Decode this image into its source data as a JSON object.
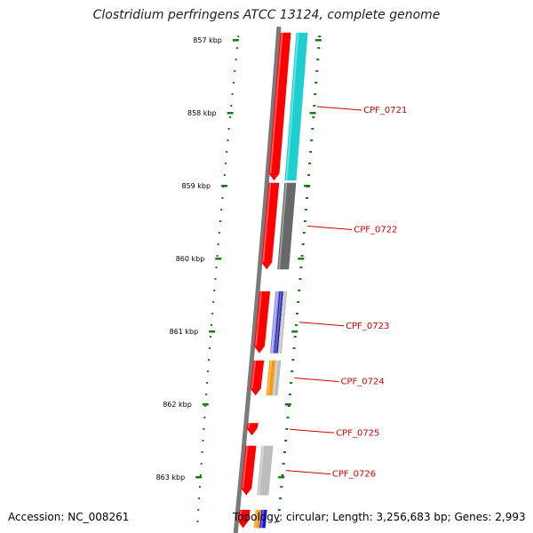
{
  "title": "Clostridium perfringens ATCC 13124, complete genome",
  "footer": {
    "accession": "Accession: NC_008261",
    "topology": "Topology: circular; Length: 3,256,683 bp; Genes: 2,993"
  },
  "colors": {
    "backbone": "#7a7a7a",
    "tick": "#1a7a1a",
    "cds": "#ff0000",
    "label": "#d00000",
    "cog_cyan": "#1ecfd0",
    "cog_dark_gray": "#686868",
    "cog_navy": "#1a1aa0",
    "cog_periwinkle": "#8a8ae8",
    "cog_orange": "#ff9900",
    "cog_light_gray": "#bdbdbd",
    "cog_blue": "#1010ff"
  },
  "ticks": [
    "857 kbp",
    "858 kbp",
    "859 kbp",
    "860 kbp",
    "861 kbp",
    "862 kbp",
    "863 kbp"
  ],
  "genes": [
    {
      "name": "CPF_0721",
      "start_kbp": 856.9,
      "end_kbp": 858.93,
      "cog": [
        "cog_cyan"
      ]
    },
    {
      "name": "CPF_0722",
      "start_kbp": 858.96,
      "end_kbp": 860.15,
      "cog": [
        "cog_dark_gray"
      ]
    },
    {
      "name": "CPF_0723",
      "start_kbp": 860.45,
      "end_kbp": 861.3,
      "cog": [
        "cog_periwinkle",
        "cog_navy",
        "cog_light_gray"
      ]
    },
    {
      "name": "CPF_0724",
      "start_kbp": 861.4,
      "end_kbp": 861.88,
      "cog": [
        "cog_orange",
        "cog_light_gray"
      ]
    },
    {
      "name": "CPF_0725",
      "start_kbp": 862.26,
      "end_kbp": 862.43,
      "cog": []
    },
    {
      "name": "CPF_0726",
      "start_kbp": 862.57,
      "end_kbp": 863.25,
      "cog": [
        "cog_light_gray"
      ]
    }
  ],
  "partial_genes": [
    {
      "start_kbp": 863.45,
      "end_kbp": 863.7,
      "cog": [
        "cog_orange",
        "cog_blue"
      ]
    }
  ]
}
